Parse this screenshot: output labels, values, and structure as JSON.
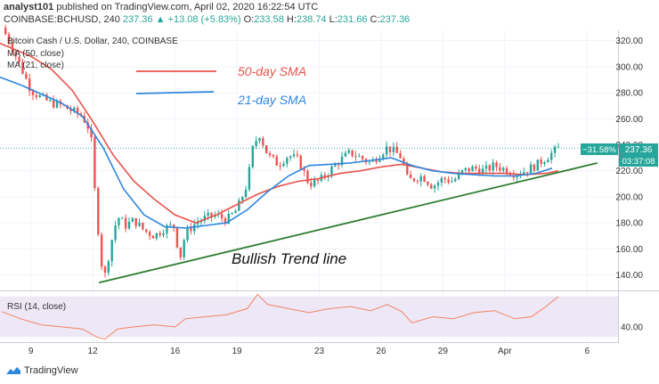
{
  "header": {
    "author": "analyst101",
    "published_text": "published on TradingView.com, April 02, 2020 16:22:54 UTC",
    "symbol": "COINBASE:BCHUSD, 240",
    "last": "237.36",
    "change": "▲ +13.08 (+5.83%)",
    "o_label": "O:",
    "o": "233.58",
    "h_label": "H:",
    "h": "238.74",
    "l_label": "L:",
    "l": "231.66",
    "c_label": "C:",
    "c": "237.36"
  },
  "legend": {
    "title": "Bitcoin Cash / U.S. Dollar, 240, COINBASE",
    "ma50": "MA (50, close)",
    "ma21": "MA (21, close)",
    "rsi": "RSI (14, close)"
  },
  "annotations": {
    "sma50": "50-day SMA",
    "sma21": "21-day SMA",
    "trend": "Bullish Trend line"
  },
  "price_tags": {
    "pct": "−31.58%",
    "price": "237.36",
    "countdown": "03:37:08"
  },
  "brand": "TradingView",
  "colors": {
    "up": "#26a69a",
    "down": "#ef5350",
    "sma50": "#e8534a",
    "sma21": "#2e86de",
    "trend": "#2e7d32",
    "rsi_line": "#f4845f",
    "rsi_band": "#ede7f6"
  },
  "chart_data": {
    "type": "candlestick",
    "y_ticks": [
      140,
      160,
      180,
      200,
      220,
      240,
      260,
      280,
      300,
      320
    ],
    "ylim": [
      128,
      328
    ],
    "x_ticks": [
      "9",
      "12",
      "16",
      "19",
      "23",
      "26",
      "29",
      "Apr",
      "6"
    ],
    "x_tick_days": [
      9,
      12,
      16,
      19,
      23,
      26,
      29,
      32,
      36
    ],
    "xlim": [
      7.5,
      37.5
    ],
    "last_day": 34.6,
    "anchors": [
      [
        7.6,
        330
      ],
      [
        8.0,
        318
      ],
      [
        8.5,
        300
      ],
      [
        9.0,
        282
      ],
      [
        9.5,
        276
      ],
      [
        10.0,
        272
      ],
      [
        10.5,
        270
      ],
      [
        11.0,
        266
      ],
      [
        11.5,
        262
      ],
      [
        11.9,
        250
      ],
      [
        12.1,
        205
      ],
      [
        12.4,
        150
      ],
      [
        12.6,
        140
      ],
      [
        12.9,
        165
      ],
      [
        13.2,
        185
      ],
      [
        13.6,
        178
      ],
      [
        14.0,
        182
      ],
      [
        14.5,
        174
      ],
      [
        15.0,
        170
      ],
      [
        15.5,
        176
      ],
      [
        16.0,
        178
      ],
      [
        16.2,
        150
      ],
      [
        16.5,
        172
      ],
      [
        17.0,
        180
      ],
      [
        17.5,
        184
      ],
      [
        18.0,
        186
      ],
      [
        18.5,
        182
      ],
      [
        19.0,
        190
      ],
      [
        19.5,
        210
      ],
      [
        19.8,
        240
      ],
      [
        20.1,
        248
      ],
      [
        20.5,
        232
      ],
      [
        21.0,
        225
      ],
      [
        21.5,
        232
      ],
      [
        22.0,
        228
      ],
      [
        22.5,
        210
      ],
      [
        23.0,
        212
      ],
      [
        23.5,
        220
      ],
      [
        24.0,
        228
      ],
      [
        24.5,
        234
      ],
      [
        25.0,
        230
      ],
      [
        25.5,
        226
      ],
      [
        26.0,
        234
      ],
      [
        26.3,
        238
      ],
      [
        26.7,
        234
      ],
      [
        27.0,
        230
      ],
      [
        27.3,
        212
      ],
      [
        27.6,
        214
      ],
      [
        28.0,
        216
      ],
      [
        28.5,
        208
      ],
      [
        29.0,
        214
      ],
      [
        29.5,
        212
      ],
      [
        30.0,
        220
      ],
      [
        30.5,
        222
      ],
      [
        31.0,
        220
      ],
      [
        31.5,
        224
      ],
      [
        32.0,
        221
      ],
      [
        32.5,
        218
      ],
      [
        33.0,
        220
      ],
      [
        33.5,
        224
      ],
      [
        34.0,
        230
      ],
      [
        34.6,
        237.36
      ]
    ],
    "sma50": [
      [
        7.5,
        318
      ],
      [
        9.0,
        308
      ],
      [
        10.0,
        298
      ],
      [
        11.0,
        282
      ],
      [
        12.0,
        258
      ],
      [
        13.0,
        232
      ],
      [
        14.0,
        212
      ],
      [
        15.0,
        198
      ],
      [
        16.0,
        186
      ],
      [
        17.0,
        180
      ],
      [
        18.0,
        186
      ],
      [
        19.0,
        194
      ],
      [
        20.0,
        202
      ],
      [
        21.0,
        208
      ],
      [
        22.0,
        212
      ],
      [
        23.0,
        214
      ],
      [
        24.0,
        218
      ],
      [
        25.0,
        220
      ],
      [
        26.0,
        223
      ],
      [
        27.0,
        225
      ],
      [
        28.0,
        222
      ],
      [
        29.0,
        219
      ],
      [
        30.0,
        218
      ],
      [
        31.0,
        218
      ],
      [
        32.0,
        218
      ],
      [
        33.0,
        217
      ],
      [
        34.0,
        218
      ],
      [
        34.6,
        220
      ]
    ],
    "sma21": [
      [
        7.5,
        292
      ],
      [
        8.5,
        286
      ],
      [
        9.5,
        279
      ],
      [
        10.5,
        272
      ],
      [
        11.5,
        262
      ],
      [
        12.5,
        238
      ],
      [
        13.5,
        206
      ],
      [
        14.5,
        186
      ],
      [
        15.5,
        177
      ],
      [
        16.5,
        176
      ],
      [
        17.5,
        178
      ],
      [
        18.5,
        180
      ],
      [
        19.5,
        190
      ],
      [
        20.5,
        204
      ],
      [
        21.5,
        216
      ],
      [
        22.5,
        224
      ],
      [
        23.5,
        225
      ],
      [
        24.5,
        226
      ],
      [
        25.5,
        228
      ],
      [
        26.5,
        230
      ],
      [
        27.5,
        224
      ],
      [
        28.5,
        220
      ],
      [
        29.5,
        218
      ],
      [
        30.5,
        217
      ],
      [
        31.5,
        216
      ],
      [
        32.5,
        216
      ],
      [
        33.5,
        218
      ],
      [
        34.3,
        222
      ]
    ],
    "trend_line": [
      [
        12.3,
        134
      ],
      [
        36.5,
        226
      ]
    ],
    "rsi_ylim": [
      25,
      75
    ],
    "rsi_ticks": [
      40
    ],
    "rsi_band": [
      30,
      70
    ],
    "rsi": [
      [
        7.6,
        55
      ],
      [
        8.5,
        48
      ],
      [
        9.5,
        42
      ],
      [
        10.5,
        40
      ],
      [
        11.5,
        38
      ],
      [
        12.2,
        30
      ],
      [
        12.6,
        28
      ],
      [
        13.2,
        38
      ],
      [
        14.0,
        40
      ],
      [
        15.0,
        42
      ],
      [
        16.0,
        40
      ],
      [
        16.5,
        48
      ],
      [
        17.5,
        50
      ],
      [
        18.5,
        52
      ],
      [
        19.5,
        58
      ],
      [
        20.0,
        72
      ],
      [
        20.5,
        62
      ],
      [
        21.5,
        58
      ],
      [
        22.5,
        54
      ],
      [
        23.5,
        58
      ],
      [
        24.5,
        60
      ],
      [
        25.5,
        56
      ],
      [
        26.3,
        62
      ],
      [
        27.0,
        55
      ],
      [
        27.5,
        44
      ],
      [
        28.5,
        50
      ],
      [
        29.5,
        48
      ],
      [
        30.5,
        54
      ],
      [
        31.5,
        56
      ],
      [
        32.5,
        48
      ],
      [
        33.3,
        50
      ],
      [
        34.0,
        60
      ],
      [
        34.6,
        70
      ]
    ]
  }
}
